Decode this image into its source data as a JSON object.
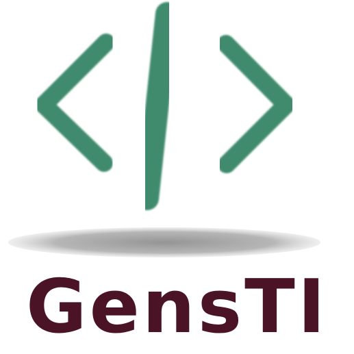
{
  "logo": {
    "icon_name": "code-brackets-icon",
    "shadow_name": "ellipse-shadow",
    "brand_name": "GensTI",
    "colors": {
      "icon_green": "#3f8b6e",
      "wordmark": "#4a1426",
      "shadow": "#9a9a9a",
      "background": "#ffffff"
    }
  }
}
